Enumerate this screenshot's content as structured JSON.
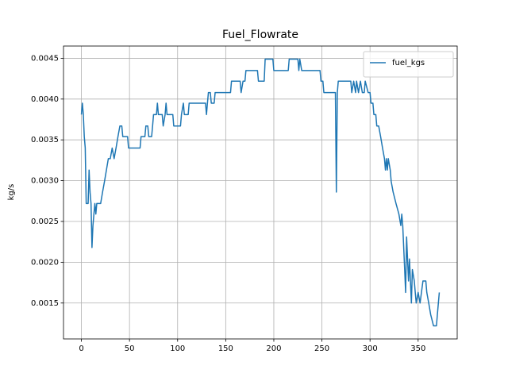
{
  "chart_data": {
    "type": "line",
    "title": "Fuel_Flowrate",
    "y_label": "kg/s",
    "x": [
      0,
      1,
      2,
      3,
      4,
      5,
      7,
      8,
      9,
      10,
      11,
      12,
      13,
      14,
      15,
      16,
      20,
      22,
      24,
      26,
      28,
      30,
      32,
      34,
      36,
      38,
      40,
      42,
      43,
      48,
      49,
      61,
      62,
      66,
      67,
      69,
      70,
      73,
      74,
      75,
      78,
      79,
      80,
      84,
      85,
      87,
      88,
      89,
      95,
      96,
      103,
      104,
      106,
      107,
      111,
      112,
      129,
      130,
      131,
      132,
      134,
      135,
      138,
      139,
      155,
      156,
      165,
      166,
      168,
      170,
      171,
      183,
      184,
      190,
      191,
      199,
      200,
      215,
      216,
      225,
      226,
      227,
      229,
      248,
      249,
      251,
      252,
      264,
      265,
      266,
      267,
      280,
      281,
      283,
      285,
      286,
      288,
      290,
      292,
      294,
      295,
      298,
      300,
      301,
      303,
      304,
      306,
      307,
      309,
      311,
      313,
      315,
      316,
      317,
      318,
      319,
      321,
      322,
      324,
      327,
      330,
      332,
      333,
      334,
      336,
      337,
      338,
      340,
      341,
      343,
      344,
      346,
      347,
      348,
      350,
      352,
      355,
      358,
      359,
      361,
      363,
      366,
      369,
      370,
      372
    ],
    "series": [
      {
        "name": "fuel_kgs",
        "color": "#1f77b4",
        "values": [
          0.00381,
          0.00395,
          0.00381,
          0.00354,
          0.0034,
          0.00272,
          0.00272,
          0.00313,
          0.00286,
          0.00272,
          0.00218,
          0.00245,
          0.00259,
          0.00272,
          0.00259,
          0.00272,
          0.00272,
          0.00286,
          0.00299,
          0.00313,
          0.00327,
          0.00327,
          0.0034,
          0.00327,
          0.0034,
          0.00354,
          0.00367,
          0.00367,
          0.00354,
          0.00354,
          0.0034,
          0.0034,
          0.00354,
          0.00354,
          0.00367,
          0.00367,
          0.00354,
          0.00354,
          0.00367,
          0.00381,
          0.00381,
          0.00395,
          0.00381,
          0.00381,
          0.00367,
          0.00381,
          0.00395,
          0.00381,
          0.00381,
          0.00367,
          0.00367,
          0.00381,
          0.00395,
          0.00381,
          0.00381,
          0.00395,
          0.00395,
          0.00381,
          0.00395,
          0.00408,
          0.00408,
          0.00395,
          0.00395,
          0.00408,
          0.00408,
          0.00422,
          0.00422,
          0.00408,
          0.00422,
          0.00422,
          0.00435,
          0.00435,
          0.00422,
          0.00422,
          0.00449,
          0.00449,
          0.00435,
          0.00435,
          0.00449,
          0.00449,
          0.00435,
          0.00449,
          0.00435,
          0.00435,
          0.00422,
          0.00422,
          0.00408,
          0.00408,
          0.00286,
          0.00408,
          0.00422,
          0.00422,
          0.00408,
          0.00422,
          0.00408,
          0.00422,
          0.00408,
          0.00422,
          0.00408,
          0.00408,
          0.00422,
          0.00408,
          0.00408,
          0.00395,
          0.00395,
          0.00381,
          0.00381,
          0.00367,
          0.00367,
          0.00354,
          0.0034,
          0.00327,
          0.00313,
          0.00327,
          0.00313,
          0.00327,
          0.00313,
          0.00299,
          0.00286,
          0.00272,
          0.00259,
          0.00245,
          0.00259,
          0.00245,
          0.00191,
          0.00163,
          0.00231,
          0.00177,
          0.00204,
          0.0015,
          0.00191,
          0.00177,
          0.00163,
          0.0015,
          0.00163,
          0.0015,
          0.00177,
          0.00177,
          0.00163,
          0.0015,
          0.00136,
          0.00122,
          0.00122,
          0.00136,
          0.00163
        ]
      }
    ],
    "xlim": [
      -18.6,
      390.6
    ],
    "ylim": [
      0.00106,
      0.00465
    ],
    "xticks": [
      0,
      50,
      100,
      150,
      200,
      250,
      300,
      350
    ],
    "yticks": [
      0.0015,
      {
        "value": 0.002,
        "label": "0.0020"
      },
      0.0025,
      {
        "value": 0.003,
        "label": "0.0030"
      },
      0.0035,
      {
        "value": 0.004,
        "label": "0.0040"
      },
      0.0045
    ],
    "grid": true,
    "legend": "upper right"
  }
}
